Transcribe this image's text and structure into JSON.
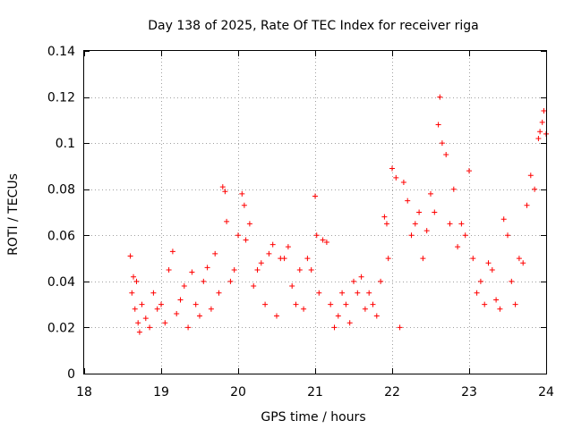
{
  "chart_data": {
    "type": "scatter",
    "title": "Day 138 of 2025, Rate Of TEC Index for receiver riga",
    "xlabel": "GPS time / hours",
    "ylabel": "ROTI / TECUs",
    "xlim": [
      18,
      24
    ],
    "ylim": [
      0,
      0.14
    ],
    "xticks": [
      18,
      19,
      20,
      21,
      22,
      23,
      24
    ],
    "yticks": [
      0,
      0.02,
      0.04,
      0.06,
      0.08,
      0.1,
      0.12,
      0.14
    ],
    "xtick_labels": [
      "18",
      "19",
      "20",
      "21",
      "22",
      "23",
      "24"
    ],
    "ytick_labels": [
      "0",
      "0.02",
      "0.04",
      "0.06",
      "0.08",
      "0.1",
      "0.12",
      "0.14"
    ],
    "grid": true,
    "marker": "+",
    "color": "#ff0000",
    "series": [
      {
        "name": "ROTI",
        "x": [
          18.6,
          18.62,
          18.64,
          18.66,
          18.68,
          18.7,
          18.72,
          18.75,
          18.8,
          18.85,
          18.9,
          18.95,
          19.0,
          19.05,
          19.1,
          19.15,
          19.2,
          19.25,
          19.3,
          19.35,
          19.4,
          19.45,
          19.5,
          19.55,
          19.6,
          19.65,
          19.7,
          19.75,
          19.8,
          19.83,
          19.85,
          19.9,
          19.95,
          20.0,
          20.05,
          20.08,
          20.1,
          20.15,
          20.2,
          20.25,
          20.3,
          20.35,
          20.4,
          20.45,
          20.5,
          20.55,
          20.6,
          20.65,
          20.7,
          20.75,
          20.8,
          20.85,
          20.9,
          20.95,
          21.0,
          21.02,
          21.05,
          21.1,
          21.15,
          21.2,
          21.25,
          21.3,
          21.35,
          21.4,
          21.45,
          21.5,
          21.55,
          21.6,
          21.65,
          21.7,
          21.75,
          21.8,
          21.85,
          21.9,
          21.93,
          21.95,
          22.0,
          22.05,
          22.1,
          22.15,
          22.2,
          22.25,
          22.3,
          22.35,
          22.4,
          22.45,
          22.5,
          22.55,
          22.6,
          22.62,
          22.65,
          22.7,
          22.75,
          22.8,
          22.85,
          22.9,
          22.95,
          23.0,
          23.05,
          23.1,
          23.15,
          23.2,
          23.25,
          23.3,
          23.35,
          23.4,
          23.45,
          23.5,
          23.55,
          23.6,
          23.65,
          23.7,
          23.75,
          23.8,
          23.85,
          23.9,
          23.92,
          23.95,
          23.97,
          24.0
        ],
        "y": [
          0.051,
          0.035,
          0.042,
          0.028,
          0.04,
          0.022,
          0.018,
          0.03,
          0.024,
          0.02,
          0.035,
          0.028,
          0.03,
          0.022,
          0.045,
          0.053,
          0.026,
          0.032,
          0.038,
          0.02,
          0.044,
          0.03,
          0.025,
          0.04,
          0.046,
          0.028,
          0.052,
          0.035,
          0.081,
          0.079,
          0.066,
          0.04,
          0.045,
          0.06,
          0.078,
          0.073,
          0.058,
          0.065,
          0.038,
          0.045,
          0.048,
          0.03,
          0.052,
          0.056,
          0.025,
          0.05,
          0.05,
          0.055,
          0.038,
          0.03,
          0.045,
          0.028,
          0.05,
          0.045,
          0.077,
          0.06,
          0.035,
          0.058,
          0.057,
          0.03,
          0.02,
          0.025,
          0.035,
          0.03,
          0.022,
          0.04,
          0.035,
          0.042,
          0.028,
          0.035,
          0.03,
          0.025,
          0.04,
          0.068,
          0.065,
          0.05,
          0.089,
          0.085,
          0.02,
          0.083,
          0.075,
          0.06,
          0.065,
          0.07,
          0.05,
          0.062,
          0.078,
          0.07,
          0.108,
          0.12,
          0.1,
          0.095,
          0.065,
          0.08,
          0.055,
          0.065,
          0.06,
          0.088,
          0.05,
          0.035,
          0.04,
          0.03,
          0.048,
          0.045,
          0.032,
          0.028,
          0.067,
          0.06,
          0.04,
          0.03,
          0.05,
          0.048,
          0.073,
          0.086,
          0.08,
          0.102,
          0.105,
          0.109,
          0.114,
          0.104
        ]
      }
    ]
  }
}
